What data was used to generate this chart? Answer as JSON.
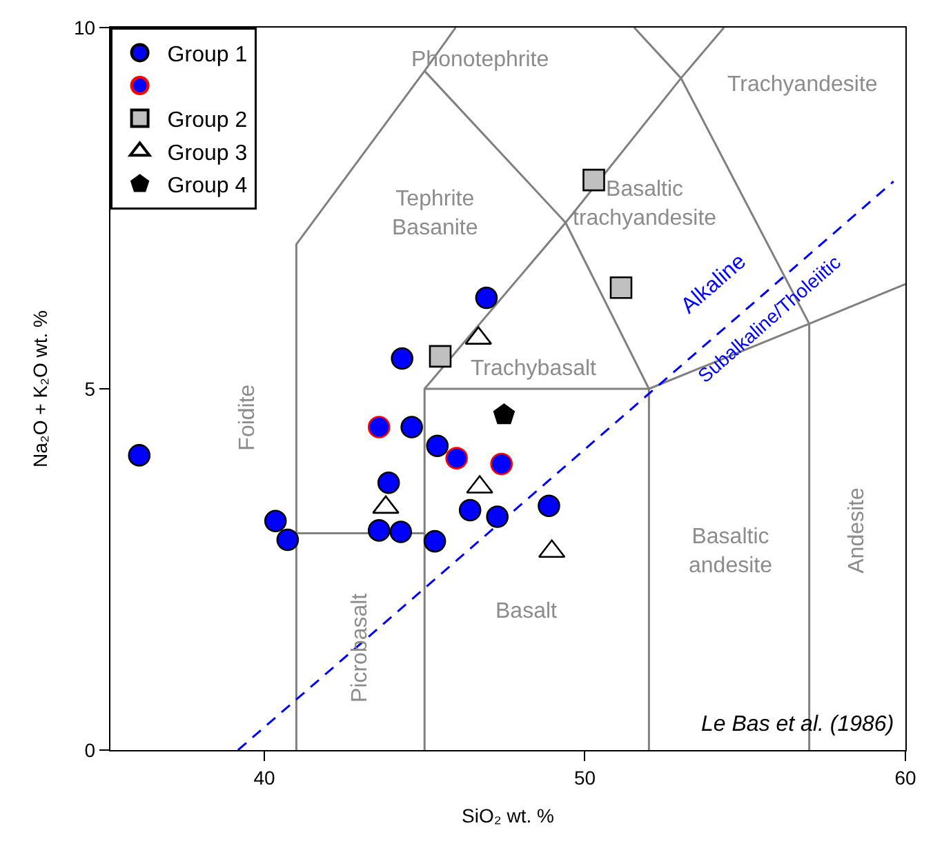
{
  "chart_data": {
    "type": "scatter",
    "xlabel": "SiO₂ wt. %",
    "ylabel": "Na₂O + K₂O wt. %",
    "xlim": [
      35.2,
      60
    ],
    "ylim": [
      0,
      10
    ],
    "xticks": [
      40,
      50,
      60
    ],
    "yticks": [
      0,
      5,
      10
    ],
    "grid": false,
    "legend": "top left",
    "series": [
      {
        "type": "line",
        "color": "#808080",
        "line_style": "solid",
        "x": [
          41,
          41,
          45,
          45.97
        ],
        "values": [
          0,
          7,
          9.4,
          10
        ]
      },
      {
        "type": "line",
        "color": "#808080",
        "line_style": "solid",
        "x": [
          45,
          49.4,
          53,
          54.34
        ],
        "values": [
          9.4,
          7.3,
          9.3,
          10
        ]
      },
      {
        "type": "line",
        "color": "#808080",
        "line_style": "solid",
        "x": [
          51.54,
          53,
          57,
          57
        ],
        "values": [
          10,
          9.3,
          5.9,
          0
        ]
      },
      {
        "type": "line",
        "color": "#808080",
        "line_style": "solid",
        "x": [
          41,
          45
        ],
        "values": [
          3,
          3
        ]
      },
      {
        "type": "line",
        "color": "#808080",
        "line_style": "solid",
        "x": [
          45,
          45,
          49.4,
          52,
          57,
          60
        ],
        "values": [
          0,
          5,
          7.3,
          5,
          5.9,
          6.45
        ]
      },
      {
        "type": "line",
        "color": "#808080",
        "line_style": "solid",
        "x": [
          45,
          52,
          52
        ],
        "values": [
          5,
          5,
          0
        ]
      },
      {
        "type": "line",
        "color": "#0000ff",
        "line_style": "dashed",
        "x": [
          39.18,
          59.63
        ],
        "values": [
          0,
          7.87
        ]
      },
      {
        "name": "Group 1",
        "color": "#0000ff",
        "marker": "circle",
        "x": [
          36.1,
          40.35,
          40.73,
          44.3,
          46.93,
          44.6,
          45.4,
          43.88,
          43.58,
          44.26,
          45.32,
          46.42,
          47.27,
          48.88
        ],
        "values": [
          4.08,
          3.17,
          2.91,
          5.42,
          6.26,
          4.47,
          4.21,
          3.7,
          3.04,
          3.02,
          2.89,
          3.32,
          3.23,
          3.38
        ]
      },
      {
        "color": "#0000ff",
        "marker": "circle",
        "x": [
          43.58,
          46.0,
          47.4
        ],
        "values": [
          4.47,
          4.04,
          3.96
        ]
      },
      {
        "name": "Group 2",
        "color": "#c0c0c0",
        "marker": "square",
        "x": [
          50.28,
          51.13,
          45.49
        ],
        "values": [
          7.89,
          6.4,
          5.45
        ]
      },
      {
        "name": "Group 3",
        "color": "#ffffff",
        "marker": "triangle",
        "x": [
          46.68,
          43.79,
          46.72,
          48.97
        ],
        "values": [
          5.7,
          3.36,
          3.64,
          2.75
        ]
      },
      {
        "name": "Group 4",
        "color": "#000000",
        "x": [
          47.48
        ],
        "values": [
          4.64
        ]
      }
    ],
    "annotations": [
      "Phonotephrite",
      "Trachyandesite",
      "Tephrite\nBasanite",
      "Basaltic\ntrachyandesite",
      "Foidite",
      "Trachybasalt",
      "Picrobasalt",
      "Basalt",
      "Basaltic\nandesite",
      "Andesite",
      "Alkaline",
      "Subalkaline/Tholeiitic",
      "Le Bas et al. (1986)"
    ]
  }
}
